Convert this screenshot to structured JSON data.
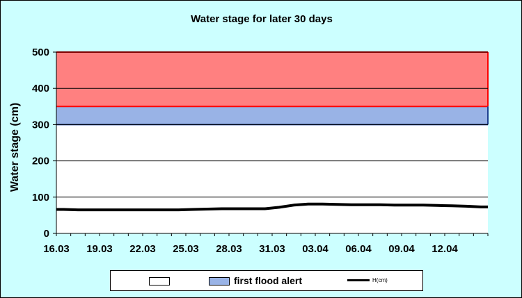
{
  "chart_data": {
    "type": "line",
    "title": "Water stage for later 30 days",
    "ylabel": "Water stage (cm)",
    "xlabel": "",
    "ylim": [
      0,
      500
    ],
    "yticks": [
      0,
      100,
      200,
      300,
      400,
      500
    ],
    "grid": true,
    "x_tick_labels": [
      "16.03",
      "19.03",
      "22.03",
      "25.03",
      "28.03",
      "31.03",
      "03.04",
      "06.04",
      "09.04",
      "12.04"
    ],
    "bands": [
      {
        "name": "",
        "from": 0,
        "to": 300,
        "color": "#ffffff"
      },
      {
        "name": "first flood alert",
        "from": 300,
        "to": 350,
        "color": "#99b3e6"
      },
      {
        "name": "",
        "from": 350,
        "to": 500,
        "color": "#ff8080"
      }
    ],
    "series": [
      {
        "name": "H(cm)",
        "color": "#000000",
        "x": [
          "16.03",
          "17.03",
          "18.03",
          "19.03",
          "20.03",
          "21.03",
          "22.03",
          "23.03",
          "24.03",
          "25.03",
          "26.03",
          "27.03",
          "28.03",
          "29.03",
          "30.03",
          "31.03",
          "01.04",
          "02.04",
          "03.04",
          "04.04",
          "05.04",
          "06.04",
          "07.04",
          "08.04",
          "09.04",
          "10.04",
          "11.04",
          "12.04",
          "13.04",
          "14.04"
        ],
        "values": [
          66,
          65,
          65,
          65,
          65,
          65,
          65,
          65,
          65,
          66,
          67,
          68,
          68,
          68,
          68,
          72,
          78,
          81,
          81,
          80,
          79,
          79,
          79,
          78,
          78,
          78,
          77,
          76,
          75,
          73
        ]
      }
    ],
    "legend_position": "bottom"
  }
}
